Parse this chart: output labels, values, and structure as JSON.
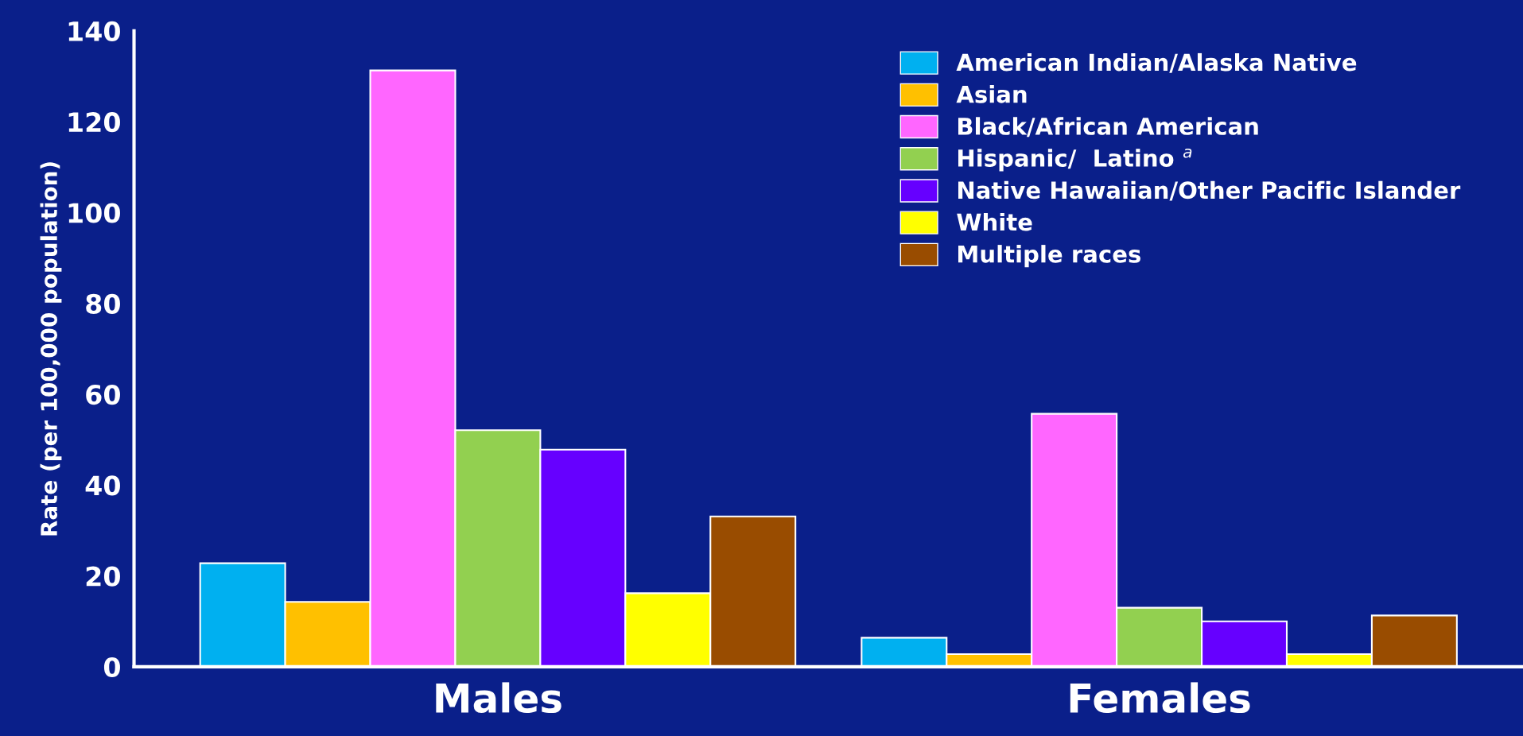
{
  "chart_data": {
    "type": "bar",
    "ylabel": "Rate (per 100,000 population)",
    "categories": [
      "Males",
      "Females"
    ],
    "series": [
      {
        "name": "American Indian/Alaska Native",
        "color": "#00b0f0",
        "values": [
          22.8,
          6.4
        ]
      },
      {
        "name": "Asian",
        "color": "#ffc000",
        "values": [
          14.3,
          2.8
        ]
      },
      {
        "name": "Black/African American",
        "color": "#ff66ff",
        "values": [
          131.3,
          55.7
        ]
      },
      {
        "name": "Hispanic/  Latino $^{a}$",
        "color": "#92d050",
        "values": [
          52.1,
          13.0
        ]
      },
      {
        "name": "Native Hawaiian/Other Pacific Islander",
        "color": "#6600ff",
        "values": [
          47.8,
          10.0
        ]
      },
      {
        "name": "White",
        "color": "#ffff00",
        "values": [
          16.2,
          2.8
        ]
      },
      {
        "name": "Multiple races",
        "color": "#994c00",
        "values": [
          33.1,
          11.3
        ]
      }
    ],
    "ylim": [
      0,
      140
    ],
    "yticks": [
      0,
      20,
      40,
      60,
      80,
      100,
      120,
      140
    ],
    "legend": "top right"
  }
}
